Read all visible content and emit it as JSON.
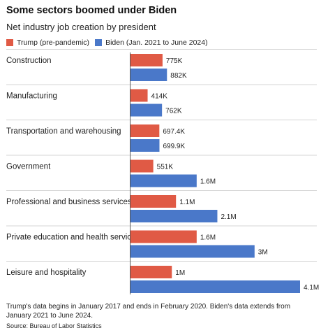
{
  "title": "Some sectors boomed under Biden",
  "subtitle": "Net industry job creation by president",
  "colors": {
    "trump": "#e05a45",
    "biden": "#4a78c9",
    "rule": "#d4d4d4",
    "axis": "#555555"
  },
  "chart_data": {
    "type": "bar",
    "orientation": "horizontal",
    "categories": [
      "Construction",
      "Manufacturing",
      "Transportation and warehousing",
      "Government",
      "Professional and business services",
      "Private education and health services",
      "Leisure and hospitality"
    ],
    "series": [
      {
        "name": "Trump (pre-pandemic)",
        "color": "#e05a45",
        "values": [
          775000,
          414000,
          697400,
          551000,
          1100000,
          1600000,
          1000000
        ],
        "labels": [
          "775K",
          "414K",
          "697.4K",
          "551K",
          "1.1M",
          "1.6M",
          "1M"
        ]
      },
      {
        "name": "Biden (Jan. 2021 to June 2024)",
        "color": "#4a78c9",
        "values": [
          882000,
          762000,
          699900,
          1600000,
          2100000,
          3000000,
          4100000
        ],
        "labels": [
          "882K",
          "762K",
          "699.9K",
          "1.6M",
          "2.1M",
          "3M",
          "4.1M"
        ]
      }
    ],
    "xlim": [
      0,
      4100000
    ],
    "legend_position": "top-left",
    "grid": false
  },
  "footnote": "Trump's data begins in January 2017 and ends in February 2020. Biden's data extends from January 2021 to June 2024.",
  "source": "Source: Bureau of Labor Statistics"
}
